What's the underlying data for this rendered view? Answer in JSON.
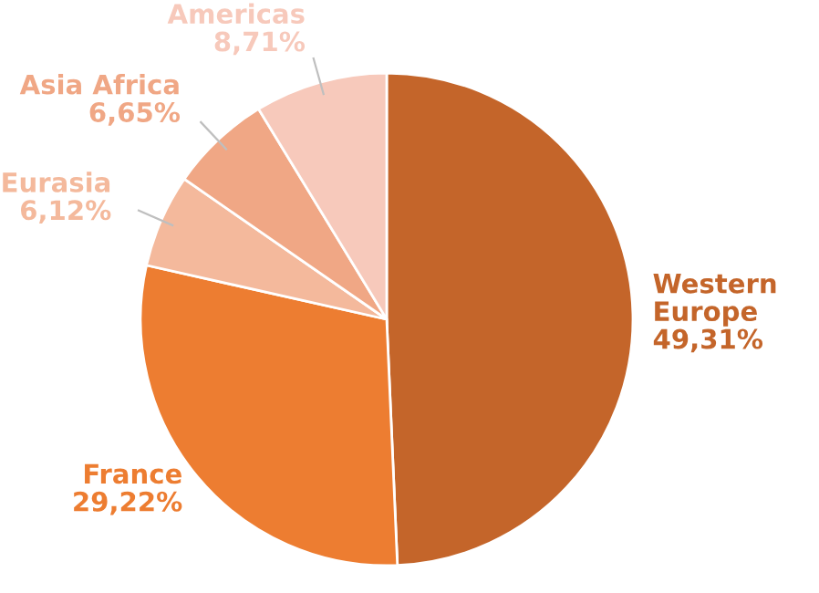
{
  "chart_data": {
    "type": "pie",
    "categories": [
      "Western Europe",
      "France",
      "Eurasia",
      "Asia Africa",
      "Americas"
    ],
    "values": [
      49.31,
      29.22,
      6.12,
      6.65,
      8.71
    ],
    "value_labels": [
      "49,31%",
      "29,22%",
      "6,12%",
      "6,65%",
      "8,71%"
    ],
    "colors": [
      "#c4652a",
      "#ed7d31",
      "#f4b99c",
      "#f0a785",
      "#f7c9bb"
    ]
  }
}
